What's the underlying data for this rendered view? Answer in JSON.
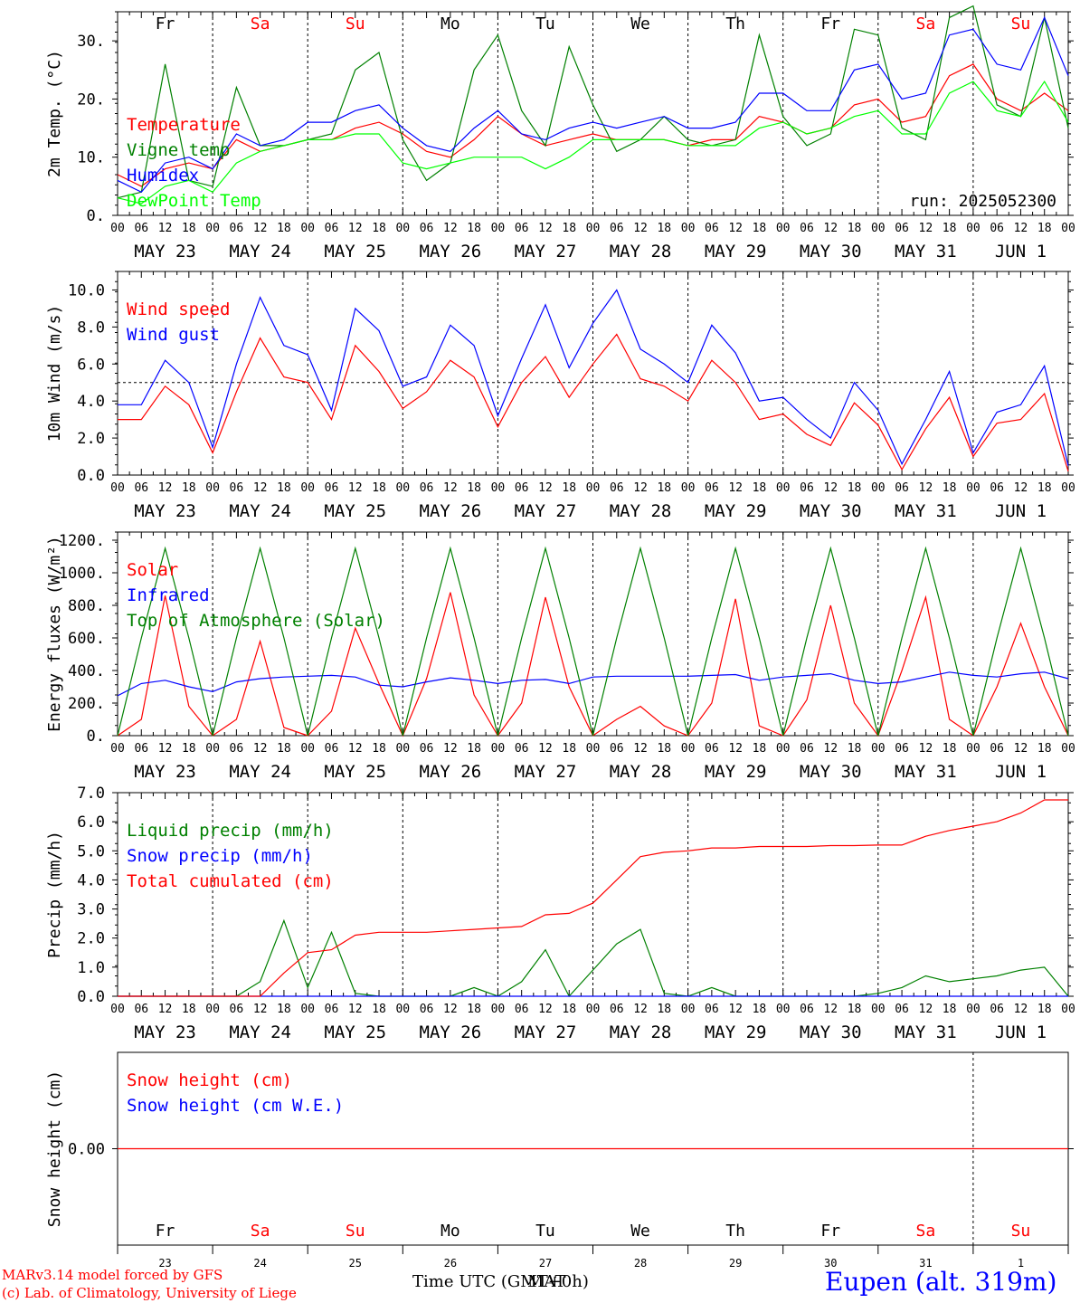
{
  "chart_data": [
    {
      "type": "line",
      "ylabel": "2m Temp. (°C)",
      "ylim": [
        0,
        35
      ],
      "yticks": [
        "0.",
        "10.",
        "20.",
        "30."
      ],
      "run_label": "run: 2025052300",
      "day_names": [
        "Fr",
        "Sa",
        "Su",
        "Mo",
        "Tu",
        "We",
        "Th",
        "Fr",
        "Sa",
        "Su"
      ],
      "x_hours": [
        0,
        6,
        12,
        18,
        24,
        30,
        36,
        42,
        48,
        54,
        60,
        66,
        72,
        78,
        84,
        90,
        96,
        102,
        108,
        114,
        120,
        126,
        132,
        138,
        144,
        150,
        156,
        162,
        168,
        174,
        180,
        186,
        192,
        198,
        204,
        210,
        216,
        222,
        228,
        234,
        240
      ],
      "series": [
        {
          "name": "Temperature",
          "color": "#ff0000",
          "values": [
            7,
            5,
            8,
            9,
            8,
            13,
            11,
            12,
            13,
            13,
            15,
            16,
            14,
            11,
            10,
            13,
            17,
            14,
            12,
            13,
            14,
            13,
            13,
            13,
            12,
            13,
            13,
            17,
            16,
            14,
            15,
            19,
            20,
            16,
            17,
            24,
            26,
            20,
            18,
            21,
            18
          ]
        },
        {
          "name": "Vigne temp",
          "color": "#008000",
          "values": [
            3,
            4,
            26,
            6,
            5,
            22,
            12,
            12,
            13,
            14,
            25,
            28,
            13,
            6,
            9,
            25,
            31,
            18,
            12,
            29,
            19,
            11,
            13,
            17,
            13,
            12,
            13,
            31,
            17,
            12,
            14,
            32,
            31,
            15,
            13,
            34,
            36,
            19,
            17,
            34,
            15
          ]
        },
        {
          "name": "Humidex",
          "color": "#0000ff",
          "values": [
            6,
            4,
            9,
            10,
            8,
            14,
            12,
            13,
            16,
            16,
            18,
            19,
            15,
            12,
            11,
            15,
            18,
            14,
            13,
            15,
            16,
            15,
            16,
            17,
            15,
            15,
            16,
            21,
            21,
            18,
            18,
            25,
            26,
            20,
            21,
            31,
            32,
            26,
            25,
            34,
            24
          ]
        },
        {
          "name": "DewPoint Temp",
          "color": "#00ff00",
          "values": [
            3,
            2,
            5,
            6,
            4,
            9,
            11,
            12,
            13,
            13,
            14,
            14,
            9,
            8,
            9,
            10,
            10,
            10,
            8,
            10,
            13,
            13,
            13,
            13,
            12,
            12,
            12,
            15,
            16,
            14,
            15,
            17,
            18,
            14,
            14,
            21,
            23,
            18,
            17,
            23,
            16
          ]
        }
      ]
    },
    {
      "type": "line",
      "ylabel": "10m Wind (m/s)",
      "ylim": [
        0,
        11
      ],
      "yticks": [
        "0.0",
        "2.0",
        "4.0",
        "6.0",
        "8.0",
        "10.0"
      ],
      "reference_line": 5,
      "x_hours": [
        0,
        6,
        12,
        18,
        24,
        30,
        36,
        42,
        48,
        54,
        60,
        66,
        72,
        78,
        84,
        90,
        96,
        102,
        108,
        114,
        120,
        126,
        132,
        138,
        144,
        150,
        156,
        162,
        168,
        174,
        180,
        186,
        192,
        198,
        204,
        210,
        216,
        222,
        228,
        234,
        240
      ],
      "series": [
        {
          "name": "Wind speed",
          "color": "#ff0000",
          "values": [
            3.0,
            3.0,
            4.8,
            3.8,
            1.2,
            4.5,
            7.4,
            5.3,
            5.0,
            3.0,
            7.0,
            5.6,
            3.6,
            4.5,
            6.2,
            5.3,
            2.6,
            5.0,
            6.4,
            4.2,
            6.0,
            7.6,
            5.2,
            4.8,
            4.0,
            6.2,
            5.0,
            3.0,
            3.3,
            2.2,
            1.6,
            3.9,
            2.7,
            0.3,
            2.5,
            4.2,
            1.0,
            2.8,
            3.0,
            4.4,
            0.2
          ]
        },
        {
          "name": "Wind gust",
          "color": "#0000ff",
          "values": [
            3.8,
            3.8,
            6.2,
            5.0,
            1.5,
            6.0,
            9.6,
            7.0,
            6.5,
            3.5,
            9.0,
            7.8,
            4.8,
            5.3,
            8.1,
            7.0,
            3.2,
            6.3,
            9.2,
            5.8,
            8.2,
            10.0,
            6.8,
            6.0,
            5.0,
            8.1,
            6.6,
            4.0,
            4.2,
            3.0,
            2.0,
            5.0,
            3.5,
            0.6,
            3.0,
            5.6,
            1.2,
            3.4,
            3.8,
            5.9,
            0.5
          ]
        }
      ]
    },
    {
      "type": "line",
      "ylabel": "Energy fluxes (W/m²)",
      "ylim": [
        0,
        1250
      ],
      "yticks": [
        "0.",
        "200.",
        "400.",
        "600.",
        "800.",
        "1000.",
        "1200."
      ],
      "x_hours": [
        0,
        6,
        12,
        18,
        24,
        30,
        36,
        42,
        48,
        54,
        60,
        66,
        72,
        78,
        84,
        90,
        96,
        102,
        108,
        114,
        120,
        126,
        132,
        138,
        144,
        150,
        156,
        162,
        168,
        174,
        180,
        186,
        192,
        198,
        204,
        210,
        216,
        222,
        228,
        234,
        240
      ],
      "series": [
        {
          "name": "Solar",
          "color": "#ff0000",
          "values": [
            0,
            100,
            860,
            180,
            0,
            100,
            580,
            50,
            0,
            150,
            660,
            320,
            0,
            350,
            880,
            250,
            0,
            200,
            850,
            300,
            0,
            100,
            180,
            60,
            0,
            200,
            840,
            60,
            0,
            220,
            800,
            200,
            0,
            400,
            850,
            100,
            0,
            300,
            690,
            300,
            0
          ]
        },
        {
          "name": "Infrared",
          "color": "#0000ff",
          "values": [
            245,
            320,
            340,
            300,
            270,
            330,
            350,
            360,
            365,
            370,
            360,
            310,
            300,
            330,
            355,
            340,
            320,
            340,
            345,
            320,
            360,
            365,
            365,
            365,
            365,
            370,
            375,
            340,
            360,
            370,
            380,
            340,
            320,
            330,
            360,
            390,
            370,
            360,
            380,
            390,
            350
          ]
        },
        {
          "name": "Top of Atmosphere (Solar)",
          "color": "#008000",
          "values": [
            0,
            600,
            1150,
            600,
            0,
            600,
            1150,
            600,
            0,
            600,
            1150,
            600,
            0,
            600,
            1150,
            600,
            0,
            600,
            1150,
            600,
            0,
            600,
            1150,
            600,
            0,
            600,
            1150,
            600,
            0,
            600,
            1150,
            600,
            0,
            600,
            1150,
            600,
            0,
            600,
            1150,
            600,
            0
          ]
        }
      ]
    },
    {
      "type": "line",
      "ylabel": "Precip (mm/h)",
      "ylim": [
        0,
        7
      ],
      "yticks": [
        "0.0",
        "1.0",
        "2.0",
        "3.0",
        "4.0",
        "5.0",
        "6.0",
        "7.0"
      ],
      "x_hours": [
        0,
        6,
        12,
        18,
        24,
        30,
        36,
        42,
        48,
        54,
        60,
        66,
        72,
        78,
        84,
        90,
        96,
        102,
        108,
        114,
        120,
        126,
        132,
        138,
        144,
        150,
        156,
        162,
        168,
        174,
        180,
        186,
        192,
        198,
        204,
        210,
        216,
        222,
        228,
        234,
        240
      ],
      "series": [
        {
          "name": "Liquid precip (mm/h)",
          "color": "#008000",
          "values": [
            0,
            0,
            0,
            0,
            0,
            0,
            0.5,
            2.6,
            0.3,
            2.2,
            0.1,
            0,
            0,
            0,
            0,
            0.3,
            0,
            0.5,
            1.6,
            0,
            0.9,
            1.8,
            2.3,
            0.1,
            0,
            0.3,
            0,
            0,
            0,
            0,
            0,
            0,
            0.1,
            0.3,
            0.7,
            0.5,
            0.6,
            0.7,
            0.9,
            1.0,
            0
          ]
        },
        {
          "name": "Snow precip (mm/h)",
          "color": "#0000ff",
          "values": [
            0,
            0,
            0,
            0,
            0,
            0,
            0,
            0,
            0,
            0,
            0,
            0,
            0,
            0,
            0,
            0,
            0,
            0,
            0,
            0,
            0,
            0,
            0,
            0,
            0,
            0,
            0,
            0,
            0,
            0,
            0,
            0,
            0,
            0,
            0,
            0,
            0,
            0,
            0,
            0,
            0
          ]
        },
        {
          "name": "Total cumulated (cm)",
          "color": "#ff0000",
          "values": [
            0,
            0,
            0,
            0,
            0,
            0,
            0,
            0.8,
            1.5,
            1.6,
            2.1,
            2.2,
            2.2,
            2.2,
            2.25,
            2.3,
            2.35,
            2.4,
            2.8,
            2.85,
            3.2,
            4.0,
            4.8,
            4.95,
            5.0,
            5.1,
            5.1,
            5.15,
            5.15,
            5.15,
            5.18,
            5.18,
            5.2,
            5.2,
            5.5,
            5.7,
            5.85,
            6.0,
            6.3,
            6.75,
            6.75
          ]
        }
      ]
    },
    {
      "type": "line",
      "ylabel": "Snow height (cm)",
      "ylim": [
        -1,
        1
      ],
      "yticks": [
        "0.00"
      ],
      "x_hours": [
        0,
        240
      ],
      "series": [
        {
          "name": "Snow height (cm)",
          "color": "#ff0000",
          "values": [
            0,
            0
          ]
        },
        {
          "name": "Snow height (cm W.E.)",
          "color": "#0000ff",
          "values": []
        }
      ]
    }
  ],
  "x_axis": {
    "hour_ticks": [
      "00",
      "06",
      "12",
      "18"
    ],
    "date_labels": [
      "MAY 23",
      "MAY 24",
      "MAY 25",
      "MAY 26",
      "MAY 27",
      "MAY 28",
      "MAY 29",
      "MAY 30",
      "MAY 31",
      "JUN  1"
    ],
    "bottom_days": [
      "Fr",
      "Sa",
      "Su",
      "Mo",
      "Tu",
      "We",
      "Th",
      "Fr",
      "Sa",
      "Su"
    ],
    "bottom_day_numbers": [
      "23",
      "24",
      "25",
      "26",
      "27",
      "28",
      "29",
      "30",
      "31",
      "1"
    ],
    "weekend_color": "#ff0000",
    "title": "Time UTC (GMT+0h)",
    "overlap_title": "MAT"
  },
  "footer": {
    "credit_1": "MARv3.14 model forced by GFS",
    "credit_2": "(c) Lab. of Climatology, University of Liege",
    "station": "Eupen (alt. 319m)"
  }
}
